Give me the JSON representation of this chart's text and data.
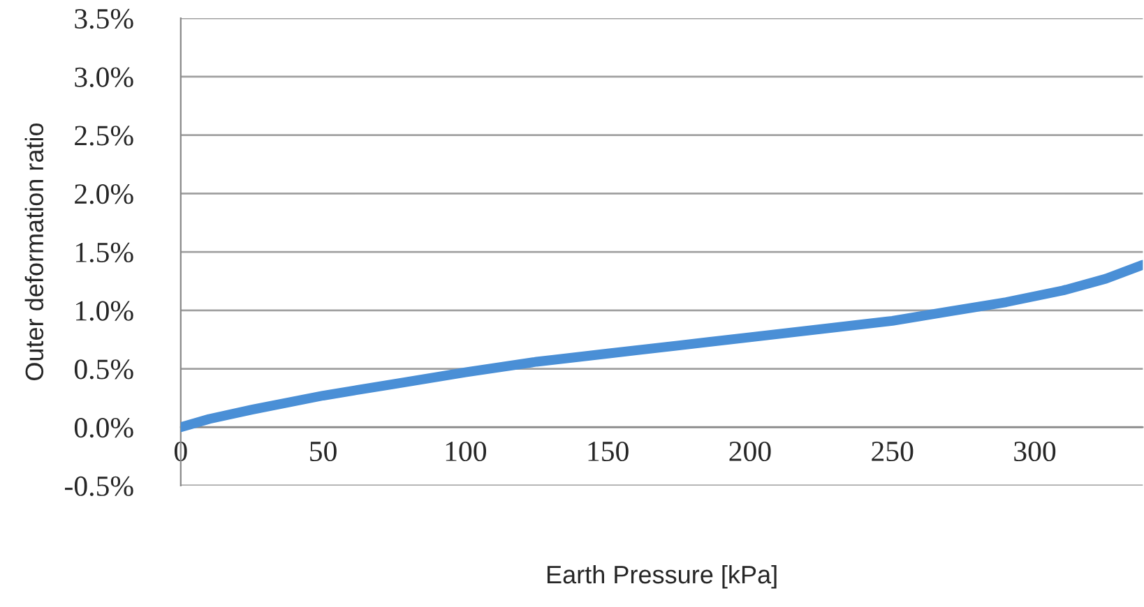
{
  "chart_data": {
    "type": "line",
    "xlabel": "Earth Pressure [kPa]",
    "ylabel": "Outer deformation ratio",
    "x": [
      0,
      10,
      25,
      50,
      75,
      100,
      125,
      150,
      175,
      200,
      225,
      250,
      270,
      290,
      310,
      325,
      338
    ],
    "series": [
      {
        "color": "#4a8fd6",
        "values": [
          0,
          0.07,
          0.15,
          0.27,
          0.37,
          0.47,
          0.56,
          0.63,
          0.7,
          0.77,
          0.84,
          0.91,
          0.99,
          1.07,
          1.17,
          1.27,
          1.39
        ]
      }
    ],
    "xlim": [
      0,
      338
    ],
    "xticks": [
      0,
      50,
      100,
      150,
      200,
      250,
      300
    ],
    "ylim": [
      -0.5,
      3.5
    ],
    "yticks": [
      {
        "value": -0.5,
        "label": "-0.5%"
      },
      {
        "value": 0,
        "label": "0.0%"
      },
      {
        "value": 0.5,
        "label": "0.5%"
      },
      {
        "value": 1.0,
        "label": "1.0%"
      },
      {
        "value": 1.5,
        "label": "1.5%"
      },
      {
        "value": 2.0,
        "label": "2.0%"
      },
      {
        "value": 2.5,
        "label": "2.5%"
      },
      {
        "value": 3.0,
        "label": "3.0%"
      },
      {
        "value": 3.5,
        "label": "3.5%"
      }
    ],
    "grid": "y",
    "marker": "none",
    "line_style": "solid"
  }
}
